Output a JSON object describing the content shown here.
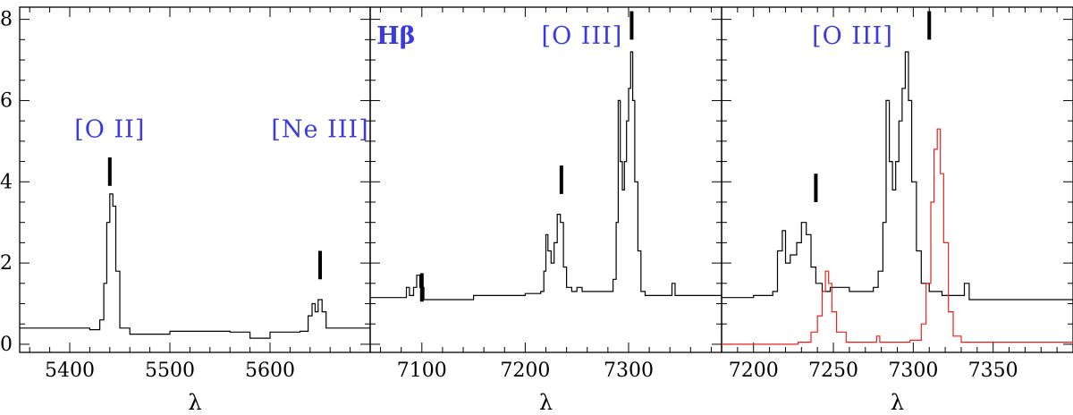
{
  "chart_data": [
    {
      "type": "line",
      "xlabel": "λ",
      "xlim": [
        5350,
        5700
      ],
      "ylim": [
        -0.2,
        8.3
      ],
      "xticks": [
        5400,
        5500,
        5600
      ],
      "yticks": [
        0,
        2,
        4,
        6,
        8
      ],
      "series": [
        {
          "color": "#000000",
          "points": [
            [
              5350,
              0.4
            ],
            [
              5420,
              0.36
            ],
            [
              5430,
              0.6
            ],
            [
              5434,
              1.5
            ],
            [
              5437,
              3.0
            ],
            [
              5440,
              3.7
            ],
            [
              5443,
              3.4
            ],
            [
              5446,
              1.8
            ],
            [
              5450,
              0.4
            ],
            [
              5460,
              0.25
            ],
            [
              5500,
              0.32
            ],
            [
              5560,
              0.3
            ],
            [
              5580,
              0.15
            ],
            [
              5600,
              0.3
            ],
            [
              5630,
              0.32
            ],
            [
              5638,
              0.7
            ],
            [
              5642,
              1.0
            ],
            [
              5645,
              0.8
            ],
            [
              5648,
              1.1
            ],
            [
              5652,
              0.8
            ],
            [
              5656,
              0.4
            ],
            [
              5700,
              0.4
            ]
          ]
        }
      ],
      "annotations": [
        {
          "text": "[O II]",
          "x": 5440,
          "y": 5.1,
          "tick_y": [
            3.9,
            4.6
          ]
        },
        {
          "text": "[Ne III]",
          "x": 5650,
          "y": 5.1,
          "tick_y": [
            1.6,
            2.3
          ]
        }
      ]
    },
    {
      "type": "line",
      "xlabel": "λ",
      "xlim": [
        7050,
        7390
      ],
      "ylim": [
        -0.2,
        8.3
      ],
      "xticks": [
        7100,
        7200,
        7300
      ],
      "yticks": [
        0,
        2,
        4,
        6,
        8
      ],
      "series": [
        {
          "color": "#000000",
          "points": [
            [
              7050,
              1.15
            ],
            [
              7080,
              1.15
            ],
            [
              7085,
              1.4
            ],
            [
              7088,
              1.2
            ],
            [
              7092,
              1.4
            ],
            [
              7095,
              1.7
            ],
            [
              7098,
              1.4
            ],
            [
              7102,
              1.1
            ],
            [
              7150,
              1.2
            ],
            [
              7200,
              1.25
            ],
            [
              7215,
              1.3
            ],
            [
              7218,
              1.8
            ],
            [
              7220,
              2.7
            ],
            [
              7222,
              2.3
            ],
            [
              7225,
              2.0
            ],
            [
              7228,
              2.5
            ],
            [
              7231,
              3.2
            ],
            [
              7234,
              3.0
            ],
            [
              7237,
              1.9
            ],
            [
              7240,
              1.4
            ],
            [
              7245,
              1.3
            ],
            [
              7250,
              1.4
            ],
            [
              7255,
              1.3
            ],
            [
              7280,
              1.3
            ],
            [
              7285,
              1.6
            ],
            [
              7288,
              3.0
            ],
            [
              7290,
              6.0
            ],
            [
              7292,
              4.5
            ],
            [
              7294,
              3.8
            ],
            [
              7296,
              4.5
            ],
            [
              7298,
              5.5
            ],
            [
              7300,
              6.3
            ],
            [
              7302,
              7.2
            ],
            [
              7304,
              6.0
            ],
            [
              7306,
              4.0
            ],
            [
              7309,
              2.3
            ],
            [
              7312,
              1.3
            ],
            [
              7316,
              1.2
            ],
            [
              7320,
              1.2
            ],
            [
              7340,
              1.2
            ],
            [
              7342,
              1.5
            ],
            [
              7345,
              1.2
            ],
            [
              7390,
              1.2
            ]
          ]
        }
      ],
      "annotations": [
        {
          "text": "Hβ",
          "x": 7075,
          "y": 7.4,
          "tick_y": null
        },
        {
          "text": "[O III]",
          "x": 7255,
          "y": 7.4,
          "tick_y": null
        },
        {
          "text": "",
          "x": 7100,
          "y": null,
          "tick_y": [
            1.05,
            1.75
          ]
        },
        {
          "text": "",
          "x": 7235,
          "y": null,
          "tick_y": [
            3.7,
            4.4
          ]
        },
        {
          "text": "",
          "x": 7303,
          "y": null,
          "tick_y": [
            7.5,
            8.2
          ]
        }
      ]
    },
    {
      "type": "line",
      "xlabel": "λ",
      "xlim": [
        7180,
        7400
      ],
      "ylim": [
        -0.2,
        8.3
      ],
      "xticks": [
        7200,
        7250,
        7300,
        7350
      ],
      "yticks": [
        0,
        2,
        4,
        6,
        8
      ],
      "series": [
        {
          "color": "#000000",
          "points": [
            [
              7180,
              1.15
            ],
            [
              7200,
              1.2
            ],
            [
              7212,
              1.3
            ],
            [
              7215,
              2.3
            ],
            [
              7218,
              2.8
            ],
            [
              7220,
              2.0
            ],
            [
              7223,
              2.2
            ],
            [
              7227,
              2.5
            ],
            [
              7230,
              3.0
            ],
            [
              7233,
              2.7
            ],
            [
              7236,
              1.9
            ],
            [
              7239,
              1.5
            ],
            [
              7243,
              1.3
            ],
            [
              7248,
              1.4
            ],
            [
              7260,
              1.3
            ],
            [
              7275,
              1.4
            ],
            [
              7278,
              1.8
            ],
            [
              7281,
              3.0
            ],
            [
              7283,
              6.0
            ],
            [
              7285,
              4.5
            ],
            [
              7287,
              3.8
            ],
            [
              7289,
              4.5
            ],
            [
              7291,
              5.5
            ],
            [
              7293,
              6.3
            ],
            [
              7295,
              7.2
            ],
            [
              7297,
              6.0
            ],
            [
              7299,
              4.0
            ],
            [
              7302,
              2.3
            ],
            [
              7305,
              1.5
            ],
            [
              7310,
              1.3
            ],
            [
              7318,
              1.2
            ],
            [
              7330,
              1.2
            ],
            [
              7332,
              1.5
            ],
            [
              7335,
              1.1
            ],
            [
              7400,
              1.05
            ]
          ]
        },
        {
          "color": "#e8211c",
          "points": [
            [
              7180,
              0.0
            ],
            [
              7228,
              0.05
            ],
            [
              7236,
              0.3
            ],
            [
              7240,
              0.7
            ],
            [
              7243,
              1.3
            ],
            [
              7245,
              1.8
            ],
            [
              7247,
              1.5
            ],
            [
              7249,
              0.8
            ],
            [
              7252,
              0.3
            ],
            [
              7258,
              0.05
            ],
            [
              7275,
              0.05
            ],
            [
              7277,
              0.2
            ],
            [
              7279,
              0.05
            ],
            [
              7298,
              0.1
            ],
            [
              7305,
              0.5
            ],
            [
              7308,
              1.5
            ],
            [
              7311,
              3.5
            ],
            [
              7313,
              4.8
            ],
            [
              7315,
              5.3
            ],
            [
              7317,
              4.2
            ],
            [
              7319,
              2.5
            ],
            [
              7322,
              0.8
            ],
            [
              7325,
              0.2
            ],
            [
              7330,
              0.05
            ],
            [
              7400,
              0.0
            ]
          ]
        }
      ],
      "annotations": [
        {
          "text": "[O III]",
          "x": 7262,
          "y": 7.4,
          "tick_y": null
        },
        {
          "text": "",
          "x": 7239,
          "y": null,
          "tick_y": [
            3.5,
            4.2
          ]
        },
        {
          "text": "",
          "x": 7310,
          "y": null,
          "tick_y": [
            7.5,
            8.2
          ]
        }
      ]
    }
  ],
  "colors": {
    "label": "#3a3ae0",
    "axis": "#000000"
  }
}
